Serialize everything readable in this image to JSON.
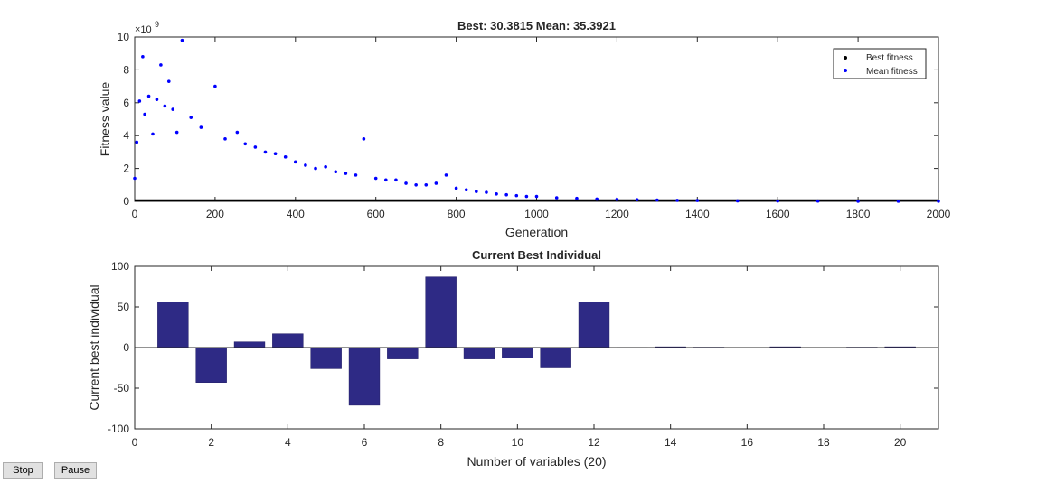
{
  "chart_data": [
    {
      "type": "scatter",
      "title": "Best: 30.3815 Mean: 35.3921",
      "xlabel": "Generation",
      "ylabel": "Fitness value",
      "y_exponent_label": "×10",
      "y_exponent": "9",
      "xlim": [
        0,
        2000
      ],
      "ylim": [
        0,
        10
      ],
      "xticks": [
        "0",
        "200",
        "400",
        "600",
        "800",
        "1000",
        "1200",
        "1400",
        "1600",
        "1800",
        "2000"
      ],
      "yticks": [
        "0",
        "2",
        "4",
        "6",
        "8",
        "10"
      ],
      "legend_position": "top-right",
      "series": [
        {
          "name": "Best fitness",
          "color": "#000000",
          "marker": "dot",
          "x": [
            0,
            2000
          ],
          "y": [
            0.0,
            0.0
          ]
        },
        {
          "name": "Mean fitness",
          "color": "#0000ff",
          "marker": "dot",
          "x": [
            0,
            5,
            12,
            20,
            25,
            35,
            45,
            55,
            65,
            75,
            85,
            95,
            105,
            118,
            140,
            165,
            200,
            225,
            255,
            275,
            300,
            325,
            350,
            375,
            400,
            425,
            450,
            475,
            500,
            525,
            550,
            570,
            600,
            625,
            650,
            675,
            700,
            725,
            750,
            775,
            800,
            825,
            850,
            875,
            900,
            925,
            950,
            975,
            1000,
            1050,
            1100,
            1150,
            1200,
            1250,
            1300,
            1350,
            1400,
            1500,
            1600,
            1700,
            1800,
            1900,
            2000
          ],
          "y": [
            1.4,
            3.6,
            6.1,
            8.8,
            5.3,
            6.4,
            4.1,
            6.2,
            8.3,
            5.8,
            7.3,
            5.6,
            4.2,
            9.8,
            5.1,
            4.5,
            7.0,
            3.8,
            4.2,
            3.5,
            3.3,
            3.0,
            2.9,
            2.7,
            2.4,
            2.2,
            2.0,
            2.1,
            1.8,
            1.7,
            1.6,
            3.8,
            1.4,
            1.3,
            1.3,
            1.1,
            1.0,
            1.0,
            1.1,
            1.6,
            0.8,
            0.7,
            0.6,
            0.55,
            0.45,
            0.4,
            0.35,
            0.3,
            0.3,
            0.22,
            0.18,
            0.14,
            0.12,
            0.1,
            0.08,
            0.06,
            0.05,
            0.03,
            0.02,
            0.015,
            0.01,
            0.01,
            0.01
          ]
        }
      ]
    },
    {
      "type": "bar",
      "title": "Current Best Individual",
      "xlabel": "Number of variables (20)",
      "ylabel": "Current best individual",
      "xlim": [
        0,
        21
      ],
      "ylim": [
        -100,
        100
      ],
      "xticks": [
        "0",
        "2",
        "4",
        "6",
        "8",
        "10",
        "12",
        "14",
        "16",
        "18",
        "20"
      ],
      "yticks": [
        "-100",
        "-50",
        "0",
        "50",
        "100"
      ],
      "bar_color": "#2e2a85",
      "categories": [
        1,
        2,
        3,
        4,
        5,
        6,
        7,
        8,
        9,
        10,
        11,
        12,
        13,
        14,
        15,
        16,
        17,
        18,
        19,
        20
      ],
      "values": [
        56,
        -43,
        7,
        17,
        -26,
        -71,
        -14,
        87,
        -14,
        -13,
        -25,
        56,
        0.3,
        1,
        0.5,
        0.2,
        1,
        0.2,
        0.5,
        1
      ]
    }
  ],
  "controls": {
    "stop_label": "Stop",
    "pause_label": "Pause"
  }
}
